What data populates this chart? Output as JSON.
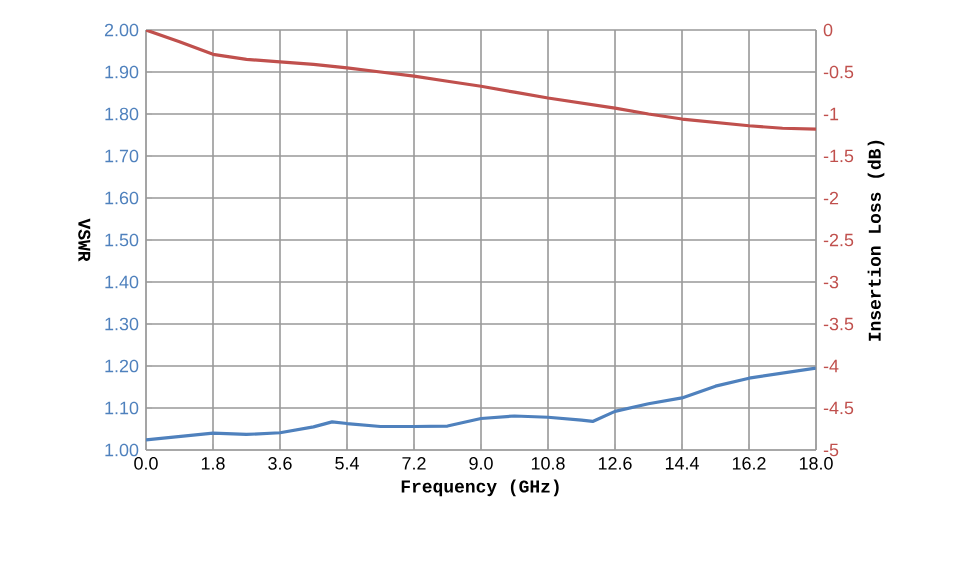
{
  "chart_data": {
    "type": "line",
    "xlabel": "Frequency (GHz)",
    "ylabel": "VSWR",
    "y2label": "Insertion Loss (dB)",
    "xlim": [
      0,
      18
    ],
    "xticks": [
      {
        "value": 0,
        "label": "0.0"
      },
      {
        "value": 1.8,
        "label": "1.8"
      },
      {
        "value": 3.6,
        "label": "3.6"
      },
      {
        "value": 5.4,
        "label": "5.4"
      },
      {
        "value": 7.2,
        "label": "7.2"
      },
      {
        "value": 9,
        "label": "9.0"
      },
      {
        "value": 10.8,
        "label": "10.8"
      },
      {
        "value": 12.6,
        "label": "12.6"
      },
      {
        "value": 14.4,
        "label": "14.4"
      },
      {
        "value": 16.2,
        "label": "16.2"
      },
      {
        "value": 18,
        "label": "18.0"
      }
    ],
    "ylim": [
      1,
      2
    ],
    "yticks": [
      {
        "value": 1,
        "label": "1.00"
      },
      {
        "value": 1.1,
        "label": "1.10"
      },
      {
        "value": 1.2,
        "label": "1.20"
      },
      {
        "value": 1.3,
        "label": "1.30"
      },
      {
        "value": 1.4,
        "label": "1.40"
      },
      {
        "value": 1.5,
        "label": "1.50"
      },
      {
        "value": 1.6,
        "label": "1.60"
      },
      {
        "value": 1.7,
        "label": "1.70"
      },
      {
        "value": 1.8,
        "label": "1.80"
      },
      {
        "value": 1.9,
        "label": "1.90"
      },
      {
        "value": 2,
        "label": "2.00"
      }
    ],
    "y2lim": [
      -5,
      0
    ],
    "y2ticks": [
      -5,
      -4.5,
      -4,
      -3.5,
      -3,
      -2.5,
      -2,
      -1.5,
      -1,
      -0.5,
      0
    ],
    "grid": true,
    "marker": "none",
    "line_style": "solid",
    "series": [
      {
        "color": "#4f81bd",
        "x": [
          0,
          0.9,
          1.8,
          2.7,
          3.6,
          4.5,
          5.0,
          5.4,
          6.3,
          7.2,
          8.1,
          9.0,
          9.9,
          10.8,
          11.7,
          12.0,
          12.6,
          13.5,
          14.4,
          15.3,
          16.2,
          17.1,
          18
        ],
        "values": [
          1.024,
          1.032,
          1.04,
          1.037,
          1.041,
          1.055,
          1.067,
          1.063,
          1.056,
          1.056,
          1.057,
          1.075,
          1.081,
          1.078,
          1.071,
          1.068,
          1.092,
          1.11,
          1.124,
          1.152,
          1.171,
          1.183,
          1.195
        ]
      },
      {
        "color": "#c0504d",
        "axis": "y2",
        "x": [
          0,
          0.9,
          1.8,
          2.7,
          3.6,
          4.5,
          5.4,
          6.3,
          7.2,
          8.1,
          9.0,
          9.9,
          10.8,
          11.7,
          12.6,
          13.5,
          14.4,
          15.3,
          16.2,
          17.1,
          18
        ],
        "values": [
          0,
          -0.14,
          -0.29,
          -0.35,
          -0.38,
          -0.41,
          -0.45,
          -0.5,
          -0.55,
          -0.61,
          -0.67,
          -0.74,
          -0.81,
          -0.87,
          -0.93,
          -1.0,
          -1.06,
          -1.1,
          -1.14,
          -1.17,
          -1.18
        ]
      }
    ]
  }
}
